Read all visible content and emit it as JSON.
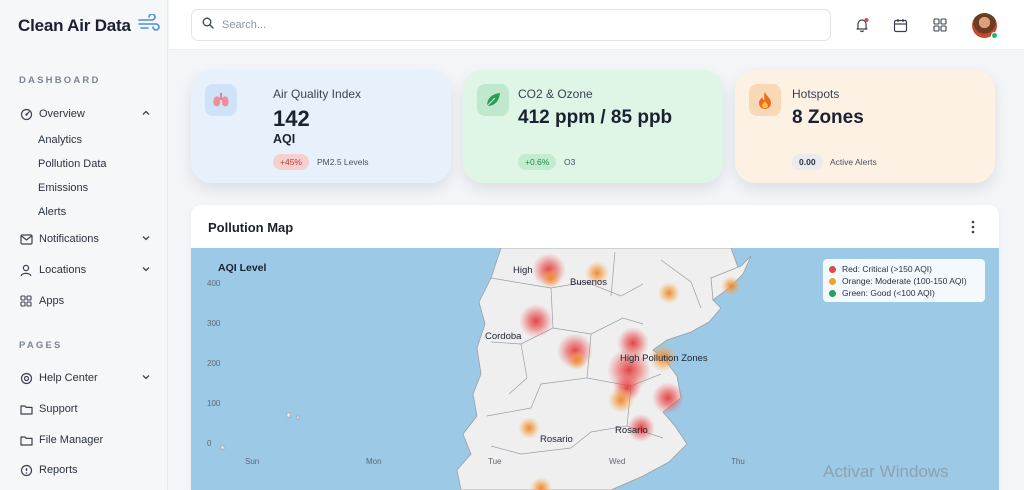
{
  "app": {
    "brand": "Clean Air Data"
  },
  "sidebar": {
    "dashboard_label": "DASHBOARD",
    "pages_label": "PAGES",
    "overview": "Overview",
    "overview_sub": [
      "Analytics",
      "Pollution Data",
      "Emissions",
      "Alerts"
    ],
    "notifications": "Notifications",
    "locations": "Locations",
    "apps": "Apps",
    "help_center": "Help Center",
    "support": "Support",
    "file_manager": "File Manager",
    "reports": "Reports"
  },
  "header": {
    "search_placeholder": "Search..."
  },
  "cards": {
    "aqi": {
      "title": "Air Quality Index",
      "value": "142",
      "unit": "AQI",
      "badge": "+45%",
      "note": "PM2.5 Levels",
      "accent": "#e05555"
    },
    "co2": {
      "title": "CO2 & Ozone",
      "value": "412 ppm / 85 ppb",
      "badge": "+0.6%",
      "note": "O3",
      "accent": "#2a9d55"
    },
    "hotspots": {
      "title": "Hotspots",
      "value": "8 Zones",
      "badge": "0.00",
      "note": "Active Alerts",
      "accent": "#ef7a22"
    }
  },
  "map_panel": {
    "title": "Pollution Map",
    "axis_title": "AQI Level",
    "y_ticks": [
      "400",
      "300",
      "200",
      "100",
      "0"
    ],
    "x_ticks": [
      "Sun",
      "Mon",
      "Tue",
      "Wed",
      "Thu"
    ],
    "labels": {
      "high": "High",
      "busenos": "Busenos",
      "cordoba": "Cordoba",
      "high_zones": "High Pollution Zones",
      "rosario_w": "Rosario",
      "rosario_e": "Rosario"
    },
    "legend": [
      {
        "label": "Red: Critical (>150 AQI)",
        "color": "#e04848"
      },
      {
        "label": "Orange: Moderate (100-150 AQI)",
        "color": "#f0a030"
      },
      {
        "label": "Green: Good (<100 AQI)",
        "color": "#23a35a"
      }
    ]
  },
  "watermark": "Activar Windows"
}
